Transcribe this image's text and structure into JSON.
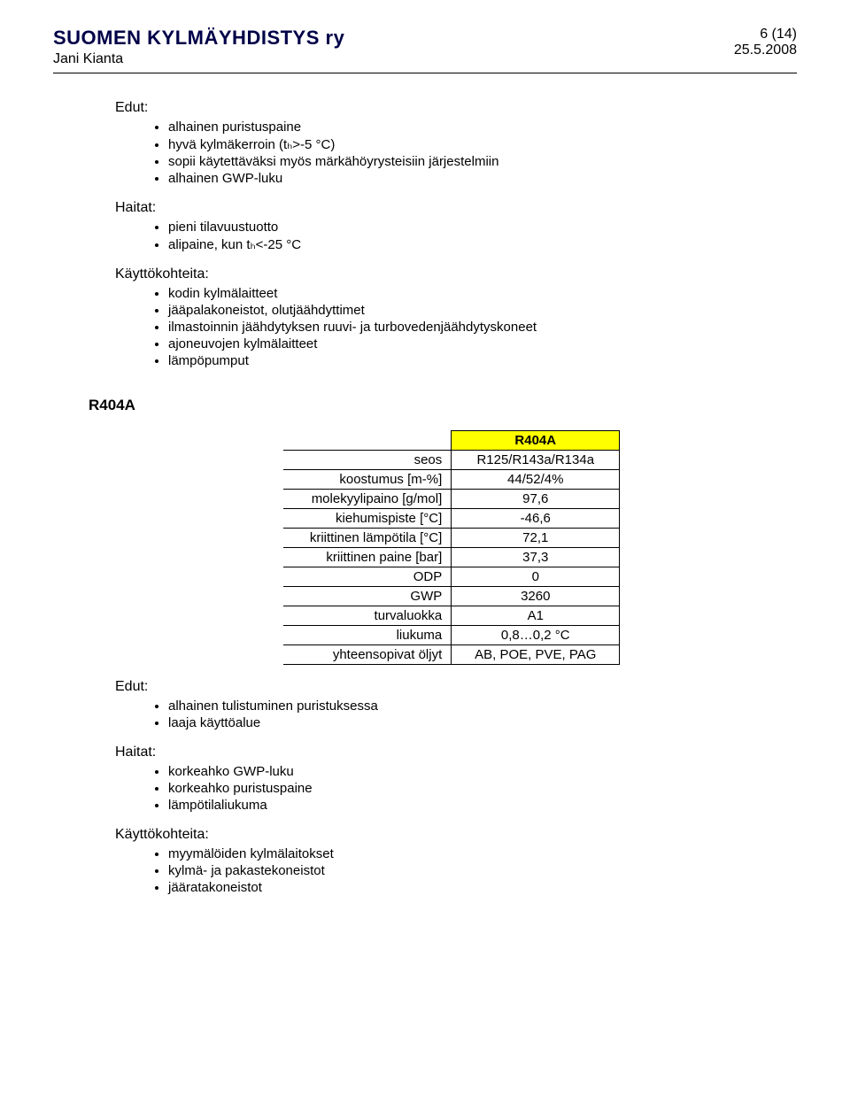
{
  "header": {
    "org": "SUOMEN KYLMÄYHDISTYS ry",
    "author": "Jani Kianta",
    "page": "6 (14)",
    "date": "25.5.2008"
  },
  "section1": {
    "edutLabel": "Edut:",
    "edut": [
      "alhainen puristuspaine",
      "hyvä kylmäkerroin (tₕ>-5 °C)",
      "sopii käytettäväksi myös märkähöyrysteisiin järjestelmiin",
      "alhainen GWP-luku"
    ],
    "haitatLabel": "Haitat:",
    "haitat": [
      "pieni tilavuustuotto",
      "alipaine, kun tₕ<-25 °C"
    ],
    "kayttLabel": "Käyttökohteita:",
    "kaytt": [
      "kodin kylmälaitteet",
      "jääpalakoneistot, olutjäähdyttimet",
      "ilmastoinnin jäähdytyksen ruuvi- ja turbovedenjäähdytyskoneet",
      "ajoneuvojen kylmälaitteet",
      "lämpöpumput"
    ]
  },
  "refrigerant": {
    "heading": "R404A",
    "tableHeader": "R404A",
    "rows": [
      {
        "label": "seos",
        "value": "R125/R143a/R134a"
      },
      {
        "label": "koostumus [m-%]",
        "value": "44/52/4%"
      },
      {
        "label": "molekyylipaino [g/mol]",
        "value": "97,6"
      },
      {
        "label": "kiehumispiste [°C]",
        "value": "-46,6"
      },
      {
        "label": "kriittinen lämpötila [°C]",
        "value": "72,1"
      },
      {
        "label": "kriittinen paine [bar]",
        "value": "37,3"
      },
      {
        "label": "ODP",
        "value": "0"
      },
      {
        "label": "GWP",
        "value": "3260"
      },
      {
        "label": "turvaluokka",
        "value": "A1"
      },
      {
        "label": "liukuma",
        "value": "0,8…0,2 °C"
      },
      {
        "label": "yhteensopivat öljyt",
        "value": "AB, POE, PVE, PAG"
      }
    ]
  },
  "section2": {
    "edutLabel": "Edut:",
    "edut": [
      "alhainen tulistuminen puristuksessa",
      "laaja käyttöalue"
    ],
    "haitatLabel": "Haitat:",
    "haitat": [
      "korkeahko GWP-luku",
      "korkeahko puristuspaine",
      "lämpötilaliukuma"
    ],
    "kayttLabel": "Käyttökohteita:",
    "kaytt": [
      "myymälöiden kylmälaitokset",
      "kylmä- ja pakastekoneistot",
      "jääratakoneistot"
    ]
  }
}
